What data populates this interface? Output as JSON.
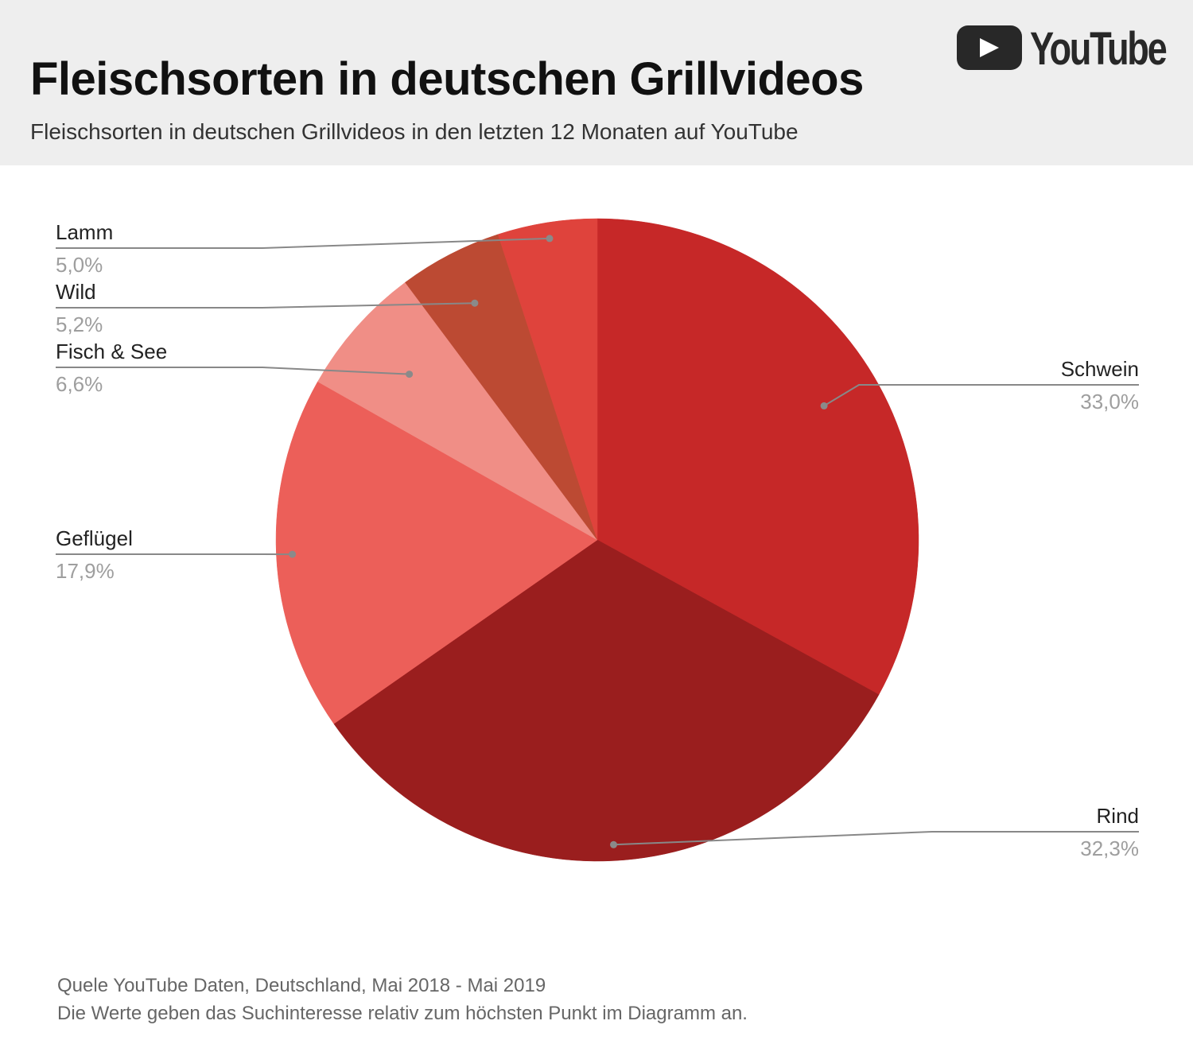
{
  "header": {
    "title": "Fleischsorten in deutschen Grillvideos",
    "subtitle": "Fleischsorten in deutschen Grillvideos in den letzten 12 Monaten auf YouTube",
    "logo_text": "YouTube"
  },
  "chart_data": {
    "type": "pie",
    "title": "Fleischsorten in deutschen Grillvideos",
    "slices": [
      {
        "label": "Schwein",
        "value": 33.0,
        "display": "33,0%",
        "color": "#c62828"
      },
      {
        "label": "Rind",
        "value": 32.3,
        "display": "32,3%",
        "color": "#9a1e1e"
      },
      {
        "label": "Geflügel",
        "value": 17.9,
        "display": "17,9%",
        "color": "#ec5f59"
      },
      {
        "label": "Fisch & See",
        "value": 6.6,
        "display": "6,6%",
        "color": "#f08e86"
      },
      {
        "label": "Wild",
        "value": 5.2,
        "display": "5,2%",
        "color": "#bc4a33"
      },
      {
        "label": "Lamm",
        "value": 5.0,
        "display": "5,0%",
        "color": "#df433c"
      }
    ],
    "start_angle": "12 o'clock",
    "direction": "clockwise",
    "label_style": "leader-lines"
  },
  "footer": {
    "source": "Quele YouTube Daten, Deutschland, Mai 2018 - Mai 2019",
    "note": "Die Werte geben das Suchinteresse relativ zum höchsten Punkt im Diagramm an."
  }
}
